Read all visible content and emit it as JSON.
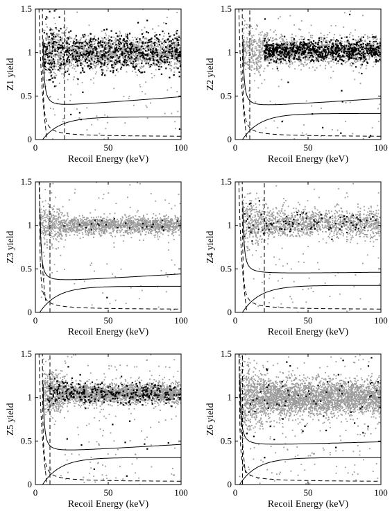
{
  "chart_data": [
    {
      "type": "scatter",
      "ylabel": "Z1 yield",
      "xlabel": "Recoil Energy (keV)",
      "xlim": [
        0,
        100
      ],
      "ylim": [
        0,
        1.5
      ],
      "xticks": [
        "0",
        "50",
        "100"
      ],
      "yticks": [
        "0",
        "0.5",
        "1",
        "1.5"
      ],
      "band": {
        "center": 1.0,
        "spread": 0.09
      },
      "gray_points": 1900,
      "black_points": 700,
      "black_min_x": 6,
      "black_spread": 0.11,
      "dashed_vertical_x": 20,
      "threshold_x": 5,
      "nr_upper_plateau": [
        0.36,
        0.49
      ],
      "nr_lower_plateau": [
        0.0,
        0.26
      ]
    },
    {
      "type": "scatter",
      "ylabel": "Z2 yield",
      "xlabel": "Recoil Energy (keV)",
      "xlim": [
        0,
        100
      ],
      "ylim": [
        0,
        1.5
      ],
      "xticks": [
        "0",
        "50",
        "100"
      ],
      "yticks": [
        "0",
        "0.5",
        "1",
        "1.5"
      ],
      "band": {
        "center": 1.02,
        "spread": 0.08
      },
      "gray_points": 1600,
      "black_points": 750,
      "black_min_x": 20,
      "black_spread": 0.06,
      "dashed_vertical_x": 10,
      "threshold_x": 5,
      "nr_upper_plateau": [
        0.36,
        0.47
      ],
      "nr_lower_plateau": [
        0.0,
        0.3
      ]
    },
    {
      "type": "scatter",
      "ylabel": "Z3 yield",
      "xlabel": "Recoil Energy (keV)",
      "xlim": [
        0,
        100
      ],
      "ylim": [
        0,
        1.5
      ],
      "xticks": [
        "0",
        "50",
        "100"
      ],
      "yticks": [
        "0",
        "0.5",
        "1",
        "1.5"
      ],
      "band": {
        "center": 1.0,
        "spread": 0.05
      },
      "gray_points": 1800,
      "black_points": 25,
      "black_min_x": 10,
      "black_spread": 0.05,
      "dashed_vertical_x": 10,
      "threshold_x": 3,
      "nr_upper_plateau": [
        0.34,
        0.44
      ],
      "nr_lower_plateau": [
        0.0,
        0.3
      ]
    },
    {
      "type": "scatter",
      "ylabel": "Z4 yield",
      "xlabel": "Recoil Energy (keV)",
      "xlim": [
        0,
        100
      ],
      "ylim": [
        0,
        1.5
      ],
      "xticks": [
        "0",
        "50",
        "100"
      ],
      "yticks": [
        "0",
        "0.5",
        "1",
        "1.5"
      ],
      "band": {
        "center": 1.02,
        "spread": 0.08
      },
      "gray_points": 1500,
      "black_points": 90,
      "black_min_x": 5,
      "black_spread": 0.07,
      "dashed_vertical_x": 20,
      "threshold_x": 5,
      "nr_upper_plateau": [
        0.44,
        0.46
      ],
      "nr_lower_plateau": [
        0.0,
        0.31
      ]
    },
    {
      "type": "scatter",
      "ylabel": "Z5 yield",
      "xlabel": "Recoil Energy (keV)",
      "xlim": [
        0,
        100
      ],
      "ylim": [
        0,
        1.5
      ],
      "xticks": [
        "0",
        "50",
        "100"
      ],
      "yticks": [
        "0",
        "0.5",
        "1",
        "1.5"
      ],
      "band": {
        "center": 1.05,
        "spread": 0.06
      },
      "gray_points": 2500,
      "black_points": 320,
      "black_min_x": 8,
      "black_spread": 0.06,
      "dashed_vertical_x": 10,
      "threshold_x": 5,
      "nr_upper_plateau": [
        0.36,
        0.46
      ],
      "nr_lower_plateau": [
        0.0,
        0.31
      ]
    },
    {
      "type": "scatter",
      "ylabel": "Z6 yield",
      "xlabel": "Recoil Energy (keV)",
      "xlim": [
        0,
        100
      ],
      "ylim": [
        0,
        1.5
      ],
      "xticks": [
        "0",
        "50",
        "100"
      ],
      "yticks": [
        "0",
        "0.5",
        "1",
        "1.5"
      ],
      "band": {
        "center": 1.0,
        "spread": 0.1
      },
      "gray_points": 3500,
      "black_points": 70,
      "black_min_x": 5,
      "black_spread": 0.25,
      "dashed_vertical_x": 5,
      "threshold_x": 3,
      "nr_upper_plateau": [
        0.44,
        0.49
      ],
      "nr_lower_plateau": [
        0.0,
        0.31
      ]
    }
  ],
  "colors": {
    "gray_points": "#9a9a9a",
    "black_points": "#000000",
    "curves": "#000000"
  }
}
